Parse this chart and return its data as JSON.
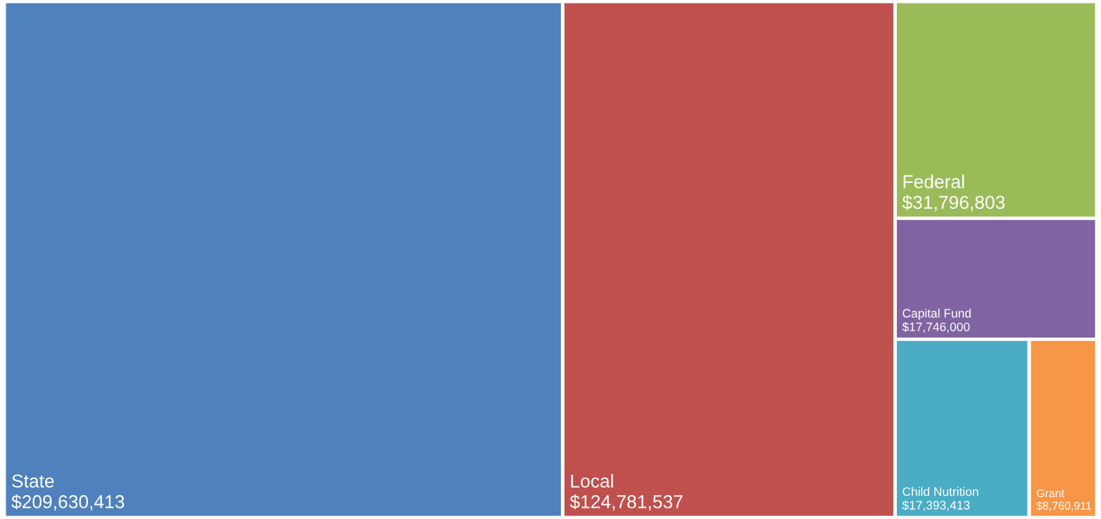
{
  "chart_data": {
    "type": "other",
    "categories": [
      "State",
      "Local",
      "Federal",
      "Capital Fund",
      "Child Nutrition",
      "Grant"
    ],
    "values": [
      209630413,
      124781537,
      31796803,
      17746000,
      17393413,
      8760911
    ],
    "value_labels": [
      "$209,630,413",
      "$124,781,537",
      "$31,796,803",
      "$17,746,000",
      "$17,393,413",
      "$8,760,911"
    ],
    "colors": [
      "#4f81bd",
      "#c0504d",
      "#9bbb59",
      "#8064a2",
      "#4bacc6",
      "#f79646"
    ]
  }
}
